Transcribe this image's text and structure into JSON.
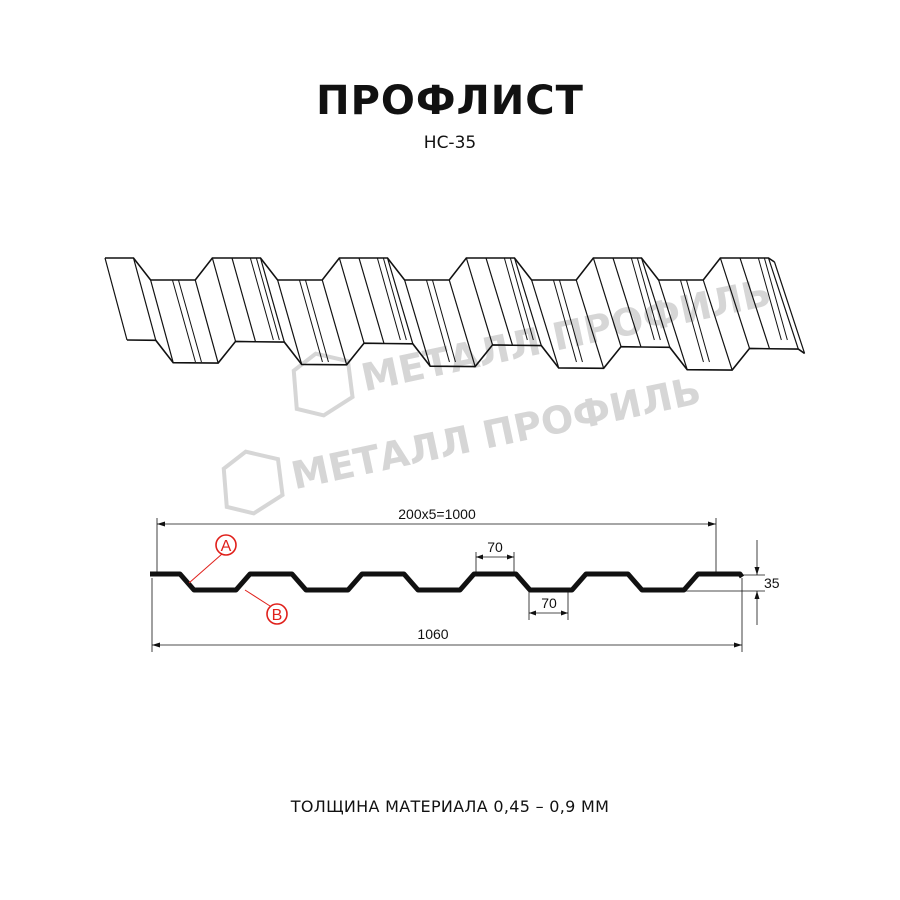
{
  "title": "ПРОФЛИСТ",
  "subtitle": "НС-35",
  "footer": "ТОЛЩИНА МАТЕРИАЛА 0,45 – 0,9 ММ",
  "watermark": {
    "text": "МЕТАЛЛ ПРОФИЛЬ",
    "color": "#d6d6d6"
  },
  "drawing": {
    "pitch_label": "200x5=1000",
    "top_width_label": "70",
    "bottom_width_label": "70",
    "height_label": "35",
    "total_width_label": "1060",
    "marker_a": "A",
    "marker_b": "B",
    "marker_color": "#e0201b",
    "profile_color": "#111111"
  }
}
